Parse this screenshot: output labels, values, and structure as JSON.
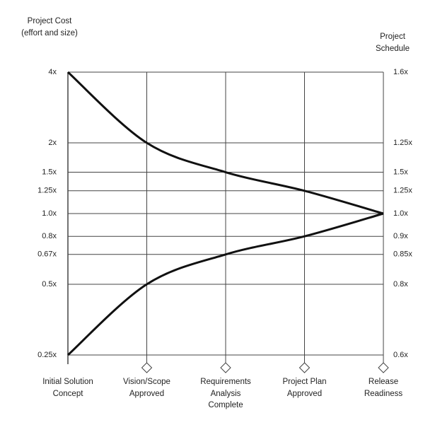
{
  "chart_data": {
    "type": "line",
    "y_title": "Project Cost (effort and size)",
    "y2_title": "Project Schedule",
    "categories": [
      "Initial Solution Concept",
      "Vision/Scope Approved",
      "Requirements Analysis Complete",
      "Project Plan Approved",
      "Release Readiness"
    ],
    "series": [
      {
        "color": "#111111",
        "values": [
          4,
          2,
          1.5,
          1.25,
          1.0
        ]
      },
      {
        "color": "#111111",
        "values": [
          0.25,
          0.5,
          0.67,
          0.8,
          1.0
        ]
      }
    ],
    "log_scale": true,
    "ylim": [
      0.25,
      4
    ],
    "yticks": [
      {
        "value": 4,
        "label": "4x"
      },
      {
        "value": 2,
        "label": "2x"
      },
      {
        "value": 1.5,
        "label": "1.5x"
      },
      {
        "value": 1.25,
        "label": "1.25x"
      },
      {
        "value": 1.0,
        "label": "1.0x"
      },
      {
        "value": 0.8,
        "label": "0.8x"
      },
      {
        "value": 0.67,
        "label": "0.67x"
      },
      {
        "value": 0.5,
        "label": "0.5x"
      },
      {
        "value": 0.25,
        "label": "0.25x"
      }
    ],
    "y2_labels": [
      "1.6x",
      "1.25x",
      "1.5x",
      "1.25x",
      "1.0x",
      "0.9x",
      "0.85x",
      "0.8x",
      "0.6x"
    ],
    "grid": true
  }
}
